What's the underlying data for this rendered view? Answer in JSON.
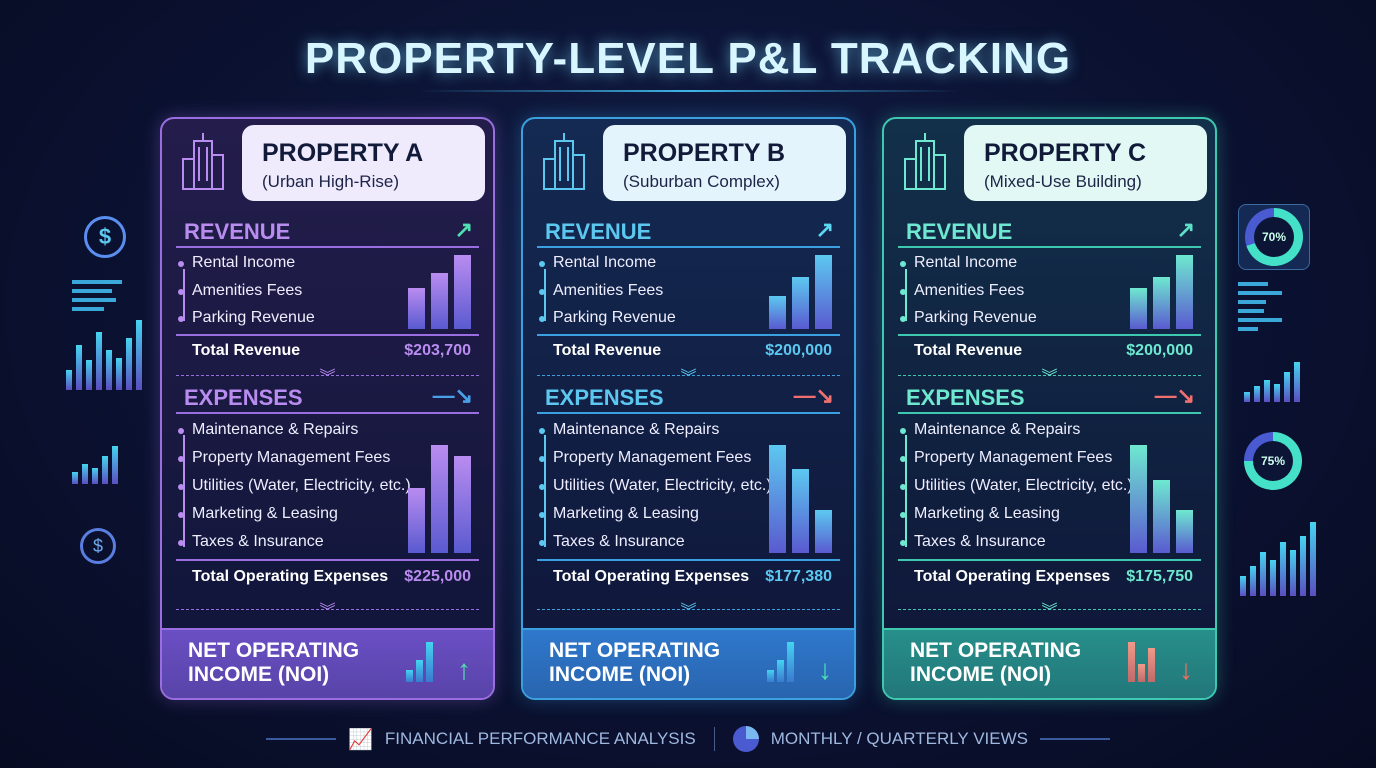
{
  "title": "PROPERTY-LEVEL P&L TRACKING",
  "properties": [
    {
      "name": "PROPERTY A",
      "subtitle": "(Urban High-Rise)",
      "accent": "#b98cf0",
      "border": "#9a6ee0",
      "bg": "#241d4c",
      "header_bg": "#efeafc",
      "noi_bg": "#6a4fc4",
      "revenue": {
        "label": "REVENUE",
        "trend": "up",
        "trend_color": "#4fe0b0",
        "items": [
          "Rental Income",
          "Amenities Fees",
          "Parking Revenue"
        ],
        "total_label": "Total Revenue",
        "total": "$203,700",
        "bar_levels": [
          0.55,
          0.75,
          1.0
        ]
      },
      "expenses": {
        "label": "EXPENSES",
        "trend": "down",
        "trend_color": "#4aa0e8",
        "items": [
          "Maintenance & Repairs",
          "Property Management Fees",
          "Utilities (Water, Electricity, etc.)",
          "Marketing & Leasing",
          "Taxes & Insurance"
        ],
        "total_label": "Total Operating Expenses",
        "total": "$225,000",
        "bar_levels": [
          0.6,
          1.0,
          0.9
        ]
      },
      "noi": {
        "label_line1": "NET OPERATING",
        "label_line2": "INCOME (NOI)",
        "direction": "up",
        "arrow_color": "#4fe0b0",
        "bar_levels": [
          0.3,
          0.55,
          1.0
        ]
      }
    },
    {
      "name": "PROPERTY B",
      "subtitle": "(Suburban Complex)",
      "accent": "#5cc8f0",
      "border": "#3aa0e0",
      "bg": "#142a52",
      "header_bg": "#e4f4fc",
      "noi_bg": "#2f78cc",
      "revenue": {
        "label": "REVENUE",
        "trend": "up",
        "trend_color": "#5cd8f0",
        "items": [
          "Rental Income",
          "Amenities Fees",
          "Parking Revenue"
        ],
        "total_label": "Total Revenue",
        "total": "$200,000",
        "bar_levels": [
          0.45,
          0.7,
          1.0
        ]
      },
      "expenses": {
        "label": "EXPENSES",
        "trend": "down",
        "trend_color": "#f07070",
        "items": [
          "Maintenance & Repairs",
          "Property Management Fees",
          "Utilities (Water, Electricity, etc.)",
          "Marketing & Leasing",
          "Taxes & Insurance"
        ],
        "total_label": "Total Operating Expenses",
        "total": "$177,380",
        "bar_levels": [
          1.0,
          0.78,
          0.4
        ]
      },
      "noi": {
        "label_line1": "NET OPERATING",
        "label_line2": "INCOME (NOI)",
        "direction": "down",
        "arrow_color": "#4fe0b0",
        "bar_levels": [
          0.3,
          0.55,
          1.0
        ]
      }
    },
    {
      "name": "PROPERTY C",
      "subtitle": "(Mixed-Use Building)",
      "accent": "#6ee8d0",
      "border": "#3ec8b0",
      "bg": "#12304a",
      "header_bg": "#e2f8f4",
      "noi_bg": "#278f8a",
      "revenue": {
        "label": "REVENUE",
        "trend": "up",
        "trend_color": "#5ee0c8",
        "items": [
          "Rental Income",
          "Amenities Fees",
          "Parking Revenue"
        ],
        "total_label": "Total Revenue",
        "total": "$200,000",
        "bar_levels": [
          0.55,
          0.7,
          1.0
        ]
      },
      "expenses": {
        "label": "EXPENSES",
        "trend": "down",
        "trend_color": "#f07070",
        "items": [
          "Maintenance & Repairs",
          "Property Management Fees",
          "Utilities (Water, Electricity, etc.)",
          "Marketing & Leasing",
          "Taxes & Insurance"
        ],
        "total_label": "Total Operating Expenses",
        "total": "$175,750",
        "bar_levels": [
          1.0,
          0.68,
          0.4
        ]
      },
      "noi": {
        "label_line1": "NET OPERATING",
        "label_line2": "INCOME (NOI)",
        "direction": "down",
        "arrow_color": "#f07060",
        "bar_levels": [
          1.0,
          0.45,
          0.85
        ]
      }
    }
  ],
  "footer": {
    "left": "FINANCIAL PERFORMANCE ANALYSIS",
    "right": "MONTHLY / QUARTERLY VIEWS"
  },
  "side": {
    "donut_top": "70%",
    "donut_bottom": "75%",
    "donut_top_value": 0.7,
    "donut_bottom_value": 0.75
  }
}
